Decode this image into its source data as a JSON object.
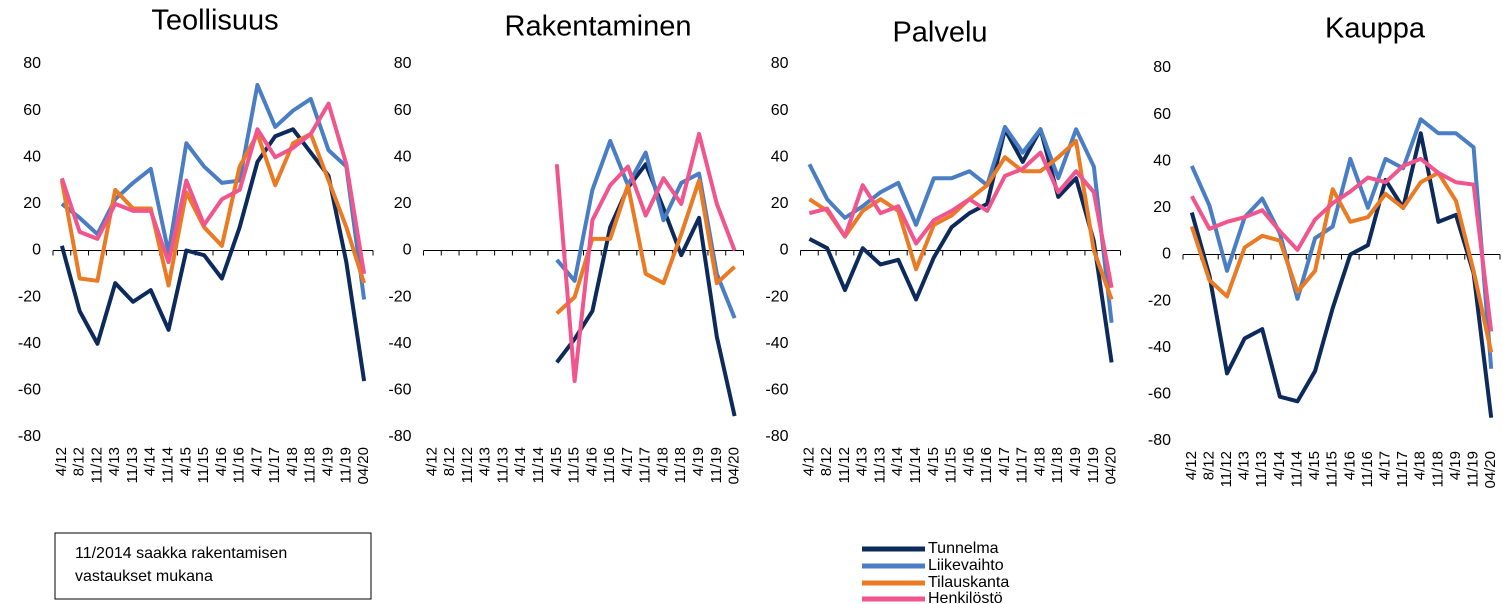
{
  "chart_data": [
    {
      "type": "line",
      "title": "Teollisuus",
      "categories": [
        "4/12",
        "8/12",
        "11/12",
        "4/13",
        "11/13",
        "4/14",
        "11/14",
        "4/15",
        "11/15",
        "4/16",
        "11/16",
        "4/17",
        "11/17",
        "4/18",
        "11/18",
        "4/19",
        "11/19",
        "04/20"
      ],
      "series": [
        {
          "values": [
            2,
            -26,
            -40,
            -14,
            -22,
            -17,
            -34,
            0,
            -2,
            -12,
            10,
            38,
            49,
            52,
            42,
            32,
            -5,
            -56
          ]
        },
        {
          "values": [
            20,
            14,
            7,
            22,
            29,
            35,
            -1,
            46,
            36,
            29,
            30,
            71,
            53,
            60,
            65,
            43,
            36,
            -21
          ]
        },
        {
          "values": [
            30,
            -12,
            -13,
            26,
            18,
            18,
            -15,
            25,
            10,
            2,
            36,
            50,
            28,
            46,
            50,
            30,
            10,
            -14
          ]
        },
        {
          "values": [
            31,
            8,
            5,
            20,
            17,
            17,
            -5,
            30,
            11,
            22,
            26,
            52,
            40,
            44,
            50,
            63,
            37,
            -10
          ]
        }
      ],
      "ylim": [
        -80,
        80
      ],
      "yticks": [
        -80,
        -60,
        -40,
        -20,
        0,
        20,
        40,
        60,
        80
      ]
    },
    {
      "type": "line",
      "title": "Rakentaminen",
      "categories": [
        "4/12",
        "8/12",
        "11/12",
        "4/13",
        "11/13",
        "4/14",
        "11/14",
        "4/15",
        "11/15",
        "4/16",
        "11/16",
        "4/17",
        "11/17",
        "4/18",
        "11/18",
        "4/19",
        "11/19",
        "04/20"
      ],
      "series": [
        {
          "values": [
            null,
            null,
            null,
            null,
            null,
            null,
            null,
            -48,
            -38,
            -26,
            10,
            27,
            37,
            18,
            -2,
            14,
            -37,
            -71
          ]
        },
        {
          "values": [
            null,
            null,
            null,
            null,
            null,
            null,
            null,
            -4,
            -13,
            26,
            47,
            28,
            42,
            13,
            29,
            33,
            -10,
            -29
          ]
        },
        {
          "values": [
            null,
            null,
            null,
            null,
            null,
            null,
            null,
            -27,
            -20,
            5,
            5,
            28,
            -10,
            -14,
            7,
            30,
            -14,
            -7
          ]
        },
        {
          "values": [
            null,
            null,
            null,
            null,
            null,
            null,
            null,
            37,
            -56,
            13,
            28,
            36,
            15,
            31,
            20,
            50,
            20,
            0
          ]
        }
      ],
      "ylim": [
        -80,
        80
      ],
      "yticks": [
        -80,
        -60,
        -40,
        -20,
        0,
        20,
        40,
        60,
        80
      ]
    },
    {
      "type": "line",
      "title": "Palvelu",
      "categories": [
        "4/12",
        "8/12",
        "11/12",
        "4/13",
        "11/13",
        "4/14",
        "11/14",
        "4/15",
        "11/15",
        "4/16",
        "11/16",
        "4/17",
        "11/17",
        "4/18",
        "11/18",
        "4/19",
        "11/19",
        "04/20"
      ],
      "series": [
        {
          "values": [
            5,
            1,
            -17,
            1,
            -6,
            -4,
            -21,
            -3,
            10,
            16,
            20,
            52,
            38,
            52,
            23,
            31,
            4,
            -48
          ]
        },
        {
          "values": [
            37,
            22,
            14,
            19,
            25,
            29,
            11,
            31,
            31,
            34,
            28,
            53,
            42,
            52,
            31,
            52,
            36,
            -31
          ]
        },
        {
          "values": [
            22,
            17,
            6,
            17,
            22,
            17,
            -8,
            11,
            15,
            22,
            28,
            40,
            34,
            34,
            40,
            47,
            0,
            -21
          ]
        },
        {
          "values": [
            16,
            18,
            6,
            28,
            16,
            19,
            3,
            13,
            17,
            22,
            17,
            32,
            35,
            42,
            25,
            34,
            25,
            -16
          ]
        }
      ],
      "ylim": [
        -80,
        80
      ],
      "yticks": [
        -80,
        -60,
        -40,
        -20,
        0,
        20,
        40,
        60,
        80
      ]
    },
    {
      "type": "line",
      "title": "Kauppa",
      "categories": [
        "4/12",
        "8/12",
        "11/12",
        "4/13",
        "11/13",
        "4/14",
        "11/14",
        "4/15",
        "11/15",
        "4/16",
        "11/16",
        "4/17",
        "11/17",
        "4/18",
        "11/18",
        "4/19",
        "11/19",
        "04/20"
      ],
      "series": [
        {
          "values": [
            18,
            -9,
            -51,
            -36,
            -32,
            -61,
            -63,
            -50,
            -23,
            0,
            4,
            32,
            20,
            52,
            14,
            17,
            -8,
            -70
          ]
        },
        {
          "values": [
            38,
            21,
            -7,
            16,
            24,
            9,
            -19,
            7,
            12,
            41,
            20,
            41,
            37,
            58,
            52,
            52,
            46,
            -49
          ]
        },
        {
          "values": [
            12,
            -11,
            -18,
            3,
            8,
            6,
            -16,
            -7,
            28,
            14,
            16,
            26,
            20,
            31,
            35,
            23,
            -7,
            -42
          ]
        },
        {
          "values": [
            25,
            11,
            14,
            16,
            19,
            10,
            2,
            15,
            22,
            27,
            33,
            31,
            38,
            41,
            35,
            31,
            30,
            -33
          ]
        }
      ],
      "ylim": [
        -80,
        80
      ],
      "yticks": [
        -80,
        -60,
        -40,
        -20,
        0,
        20,
        40,
        60,
        80
      ]
    }
  ],
  "legend": [
    {
      "name": "Tunnelma",
      "color": "#0d2a5c"
    },
    {
      "name": "Liikevaihto",
      "color": "#4a7ec4"
    },
    {
      "name": "Tilauskanta",
      "color": "#ea7a23"
    },
    {
      "name": "Henkilöstö",
      "color": "#f0558e"
    }
  ],
  "annotation": [
    "11/2014 saakka rakentamisen",
    "vastaukset mukana"
  ]
}
